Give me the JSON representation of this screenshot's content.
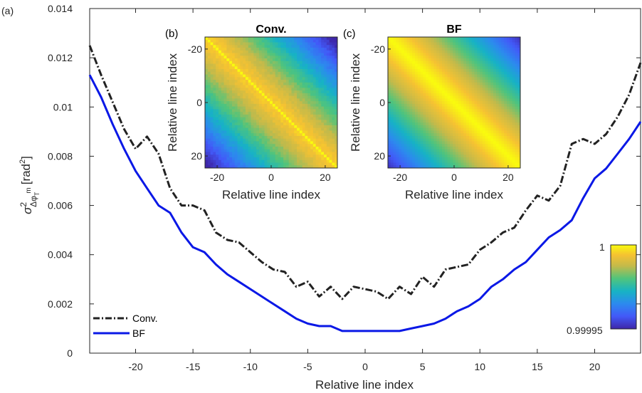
{
  "chart_data": [
    {
      "panel_label": "(a)",
      "type": "line",
      "xlabel": "Relative line index",
      "ylabel": {
        "sigma": "σ",
        "sup": "2",
        "sub": "Δφ",
        "sub_sub": "T",
        "m": "m",
        "unit": "[rad",
        "unit_sup": "2",
        "unit_end": "]"
      },
      "xlim": [
        -24,
        24
      ],
      "ylim": [
        0,
        0.014
      ],
      "xticks": [
        -20,
        -15,
        -10,
        -5,
        0,
        5,
        10,
        15,
        20
      ],
      "xtick_labels": [
        "-20",
        "-15",
        "-10",
        "-5",
        "0",
        "5",
        "10",
        "15",
        "20"
      ],
      "yticks": [
        0,
        0.002,
        0.004,
        0.006,
        0.008,
        0.01,
        0.012,
        0.014
      ],
      "ytick_labels": [
        "0",
        "0.002",
        "0.004",
        "0.006",
        "0.008",
        "0.01",
        "0.012",
        "0.014"
      ],
      "x": [
        -24,
        -23,
        -22,
        -21,
        -20,
        -19,
        -18,
        -17,
        -16,
        -15,
        -14,
        -13,
        -12,
        -11,
        -10,
        -9,
        -8,
        -7,
        -6,
        -5,
        -4,
        -3,
        -2,
        -1,
        0,
        1,
        2,
        3,
        4,
        5,
        6,
        7,
        8,
        9,
        10,
        11,
        12,
        13,
        14,
        15,
        16,
        17,
        18,
        19,
        20,
        21,
        22,
        23,
        24
      ],
      "series": [
        {
          "name": "Conv.",
          "color": "#222222",
          "style": "dash-dot",
          "values": [
            0.0125,
            0.0113,
            0.0102,
            0.0091,
            0.0083,
            0.0088,
            0.0081,
            0.0067,
            0.006,
            0.006,
            0.0058,
            0.0049,
            0.0046,
            0.0045,
            0.0041,
            0.0037,
            0.0034,
            0.0033,
            0.0027,
            0.0029,
            0.0023,
            0.0027,
            0.0022,
            0.0027,
            0.0026,
            0.0025,
            0.0022,
            0.0027,
            0.0024,
            0.0031,
            0.0027,
            0.0034,
            0.0035,
            0.0036,
            0.0042,
            0.0045,
            0.0049,
            0.0051,
            0.0058,
            0.0064,
            0.0062,
            0.0068,
            0.0085,
            0.0087,
            0.0085,
            0.0089,
            0.0096,
            0.0105,
            0.0118
          ]
        },
        {
          "name": "BF",
          "color": "#0a18e6",
          "style": "solid",
          "values": [
            0.0113,
            0.0104,
            0.0093,
            0.0083,
            0.0074,
            0.0067,
            0.006,
            0.0057,
            0.0049,
            0.0043,
            0.0041,
            0.0036,
            0.0032,
            0.0029,
            0.0026,
            0.0023,
            0.002,
            0.0017,
            0.0014,
            0.0012,
            0.0011,
            0.0011,
            0.0009,
            0.0009,
            0.0009,
            0.0009,
            0.0009,
            0.0009,
            0.001,
            0.0011,
            0.0012,
            0.0014,
            0.0017,
            0.0019,
            0.0022,
            0.0027,
            0.003,
            0.0034,
            0.0037,
            0.0042,
            0.0047,
            0.005,
            0.0054,
            0.0063,
            0.0071,
            0.0075,
            0.0081,
            0.0087,
            0.0094
          ]
        }
      ],
      "legend_position": "bottom-left"
    },
    {
      "panel_label": "(b)",
      "type": "heatmap",
      "title": "Conv.",
      "xlabel": "Relative line index",
      "ylabel": "Relative line index",
      "range": [
        -24,
        24
      ],
      "xtick_labels": [
        "-20",
        "0",
        "20"
      ],
      "ytick_labels": [
        "-20",
        "0",
        "20"
      ],
      "pattern": "correlation matrix decreasing with |i−j|, diagonal = 1",
      "noisy_diagonal": true
    },
    {
      "panel_label": "(c)",
      "type": "heatmap",
      "title": "BF",
      "xlabel": "Relative line index",
      "ylabel": "Relative line index",
      "range": [
        -24,
        24
      ],
      "xtick_labels": [
        "-20",
        "0",
        "20"
      ],
      "ytick_labels": [
        "-20",
        "0",
        "20"
      ],
      "pattern": "smooth correlation matrix decreasing with |i−j|",
      "noisy_diagonal": false
    }
  ],
  "colorbar": {
    "max_label": "1",
    "min_label": "0.99995",
    "colormap": "parula"
  }
}
